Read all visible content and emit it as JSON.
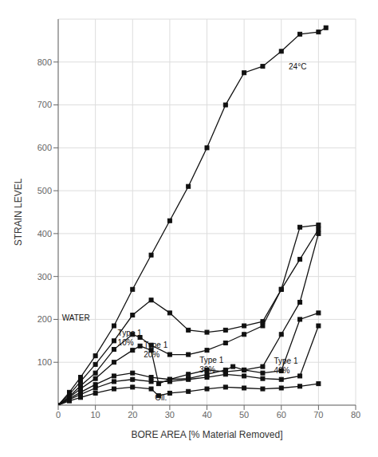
{
  "chart_data": {
    "type": "line",
    "xlabel": "BORE AREA [% Material Removed]",
    "ylabel": "STRAIN LEVEL",
    "xlim": [
      0,
      80
    ],
    "ylim": [
      0,
      900
    ],
    "xticks": [
      0,
      10,
      20,
      30,
      40,
      50,
      60,
      70,
      80
    ],
    "yticks": [
      100,
      200,
      300,
      400,
      500,
      600,
      700,
      800
    ],
    "grid": true,
    "color": "#111111",
    "marker": "square",
    "series": [
      {
        "x": [
          0,
          3,
          6,
          10,
          15,
          20,
          25,
          30,
          35,
          40,
          45,
          50,
          55,
          60,
          65,
          70,
          72
        ],
        "values": [
          0,
          30,
          65,
          115,
          185,
          270,
          350,
          430,
          510,
          600,
          700,
          775,
          790,
          825,
          865,
          870,
          880
        ]
      },
      {
        "x": [
          0,
          3,
          6,
          10,
          15,
          20,
          25,
          30,
          35,
          40,
          45,
          50,
          55,
          60,
          65,
          70
        ],
        "values": [
          0,
          25,
          55,
          95,
          150,
          210,
          245,
          215,
          175,
          170,
          175,
          185,
          195,
          270,
          415,
          420
        ]
      },
      {
        "x": [
          0,
          3,
          6,
          10,
          15,
          20,
          22,
          25,
          30,
          35,
          40,
          45,
          50,
          55,
          60,
          65,
          70
        ],
        "values": [
          0,
          20,
          45,
          75,
          130,
          165,
          158,
          140,
          118,
          118,
          128,
          145,
          165,
          185,
          270,
          340,
          410
        ]
      },
      {
        "x": [
          0,
          3,
          6,
          10,
          15,
          20,
          22,
          25,
          27,
          30,
          35,
          40,
          45,
          50,
          55,
          60,
          65,
          70
        ],
        "values": [
          0,
          18,
          38,
          62,
          100,
          128,
          138,
          128,
          50,
          60,
          72,
          82,
          78,
          82,
          90,
          165,
          240,
          400
        ]
      },
      {
        "x": [
          0,
          3,
          6,
          10,
          15,
          20,
          25,
          30,
          35,
          40,
          45,
          47,
          50,
          55,
          60,
          65,
          70
        ],
        "values": [
          0,
          15,
          30,
          48,
          68,
          75,
          65,
          60,
          62,
          72,
          82,
          90,
          82,
          75,
          80,
          200,
          215
        ]
      },
      {
        "x": [
          0,
          3,
          6,
          10,
          15,
          20,
          25,
          30,
          35,
          40,
          45,
          50,
          55,
          60,
          65,
          70
        ],
        "values": [
          0,
          13,
          25,
          40,
          55,
          60,
          55,
          55,
          60,
          65,
          72,
          68,
          62,
          60,
          68,
          185
        ]
      },
      {
        "x": [
          0,
          3,
          6,
          10,
          15,
          20,
          25,
          27,
          30,
          35,
          40,
          45,
          50,
          55,
          60,
          65,
          70
        ],
        "values": [
          0,
          10,
          18,
          28,
          38,
          42,
          38,
          22,
          28,
          32,
          38,
          42,
          40,
          38,
          40,
          44,
          50
        ]
      }
    ],
    "annotations": [
      {
        "text": "24°C",
        "x": 62,
        "y": 800
      },
      {
        "text": "WATER",
        "x": 1,
        "y": 213
      },
      {
        "text": "Type 1\n10%",
        "x": 16,
        "y": 178
      },
      {
        "text": "Type 1\n20%",
        "x": 23,
        "y": 150
      },
      {
        "text": "Type 1\n30%",
        "x": 38,
        "y": 115
      },
      {
        "text": "Type 1\n40%",
        "x": 58,
        "y": 113
      },
      {
        "text": "Oil.",
        "x": 26,
        "y": 27
      }
    ]
  }
}
